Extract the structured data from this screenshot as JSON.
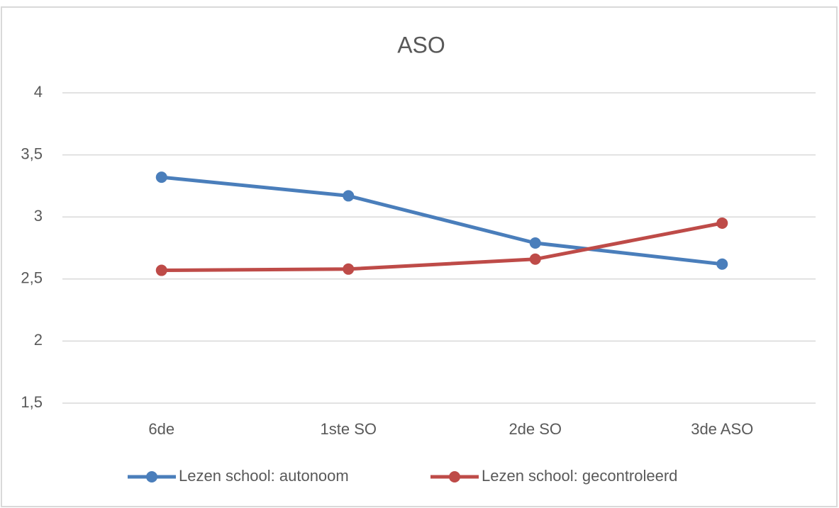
{
  "chart_data": {
    "type": "line",
    "title": "ASO",
    "categories": [
      "6de",
      "1ste SO",
      "2de SO",
      "3de ASO"
    ],
    "series": [
      {
        "name": "Lezen school: autonoom",
        "color": "#4a7ebb",
        "values": [
          3.32,
          3.17,
          2.79,
          2.62
        ]
      },
      {
        "name": "Lezen school: gecontroleerd",
        "color": "#be4b48",
        "values": [
          2.57,
          2.58,
          2.66,
          2.95
        ]
      }
    ],
    "ylim": [
      1.5,
      4
    ],
    "yticks": [
      {
        "value": 1.5,
        "label": "1,5"
      },
      2,
      {
        "value": 2.5,
        "label": "2,5"
      },
      3,
      {
        "value": 3.5,
        "label": "3,5"
      },
      4
    ],
    "grid": true,
    "legend": "bottom"
  }
}
